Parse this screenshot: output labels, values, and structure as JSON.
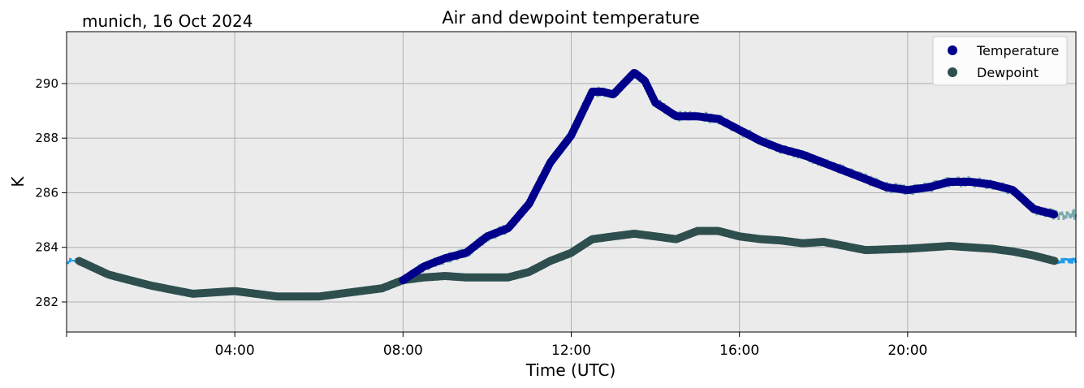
{
  "header": {
    "location_date": "munich, 16 Oct 2024"
  },
  "chart_data": {
    "type": "scatter",
    "title": "Air and dewpoint temperature",
    "xlabel": "Time (UTC)",
    "ylabel": "K",
    "x_unit": "hours since 00:00 UTC",
    "xlim": [
      0,
      24
    ],
    "ylim": [
      280.9,
      291.9
    ],
    "x_ticks": [
      4,
      8,
      12,
      16,
      20
    ],
    "x_tick_labels": [
      "04:00",
      "08:00",
      "12:00",
      "16:00",
      "20:00"
    ],
    "y_ticks": [
      282,
      284,
      286,
      288,
      290
    ],
    "y_tick_labels": [
      "282",
      "284",
      "286",
      "288",
      "290"
    ],
    "grid": true,
    "legend_position": "top-right",
    "colors": {
      "background": "#ebebeb",
      "grid": "#b0b0b0",
      "temperature_points": "#00008b",
      "dewpoint_points": "#2f4f4f",
      "temperature_raw": "#79a9aa",
      "dewpoint_raw": "#1e9be8"
    },
    "series": [
      {
        "name": "Temperature",
        "marker": "circle",
        "color": "#00008b",
        "x": [
          8.0,
          8.5,
          9.0,
          9.5,
          10.0,
          10.5,
          11.0,
          11.5,
          12.0,
          12.25,
          12.5,
          12.75,
          13.0,
          13.25,
          13.5,
          13.75,
          14.0,
          14.5,
          15.0,
          15.5,
          16.0,
          16.5,
          17.0,
          17.5,
          18.0,
          18.5,
          19.0,
          19.5,
          20.0,
          20.5,
          21.0,
          21.5,
          22.0,
          22.5,
          23.0,
          23.5
        ],
        "y": [
          282.8,
          283.3,
          283.6,
          283.8,
          284.4,
          284.7,
          285.6,
          287.1,
          288.1,
          288.9,
          289.7,
          289.7,
          289.6,
          290.0,
          290.4,
          290.1,
          289.3,
          288.8,
          288.8,
          288.7,
          288.3,
          287.9,
          287.6,
          287.4,
          287.1,
          286.8,
          286.5,
          286.2,
          286.1,
          286.2,
          286.4,
          286.4,
          286.3,
          286.1,
          285.4,
          285.2
        ]
      },
      {
        "name": "Dewpoint",
        "marker": "circle",
        "color": "#2f4f4f",
        "x": [
          0.3,
          1.0,
          2.0,
          3.0,
          4.0,
          5.0,
          6.0,
          7.0,
          7.5,
          8.0,
          8.5,
          9.0,
          9.5,
          10.0,
          10.5,
          11.0,
          11.5,
          12.0,
          12.5,
          13.0,
          13.5,
          14.0,
          14.5,
          15.0,
          15.5,
          16.0,
          16.5,
          17.0,
          17.5,
          18.0,
          18.5,
          19.0,
          20.0,
          20.5,
          21.0,
          21.5,
          22.0,
          22.5,
          23.0,
          23.5
        ],
        "y": [
          283.5,
          283.0,
          282.6,
          282.3,
          282.4,
          282.2,
          282.2,
          282.4,
          282.5,
          282.8,
          282.9,
          282.95,
          282.9,
          282.9,
          282.9,
          283.1,
          283.5,
          283.8,
          284.3,
          284.4,
          284.5,
          284.4,
          284.3,
          284.6,
          284.6,
          284.4,
          284.3,
          284.25,
          284.15,
          284.2,
          284.05,
          283.9,
          283.95,
          284.0,
          284.05,
          284.0,
          283.95,
          283.85,
          283.7,
          283.5
        ]
      }
    ]
  }
}
